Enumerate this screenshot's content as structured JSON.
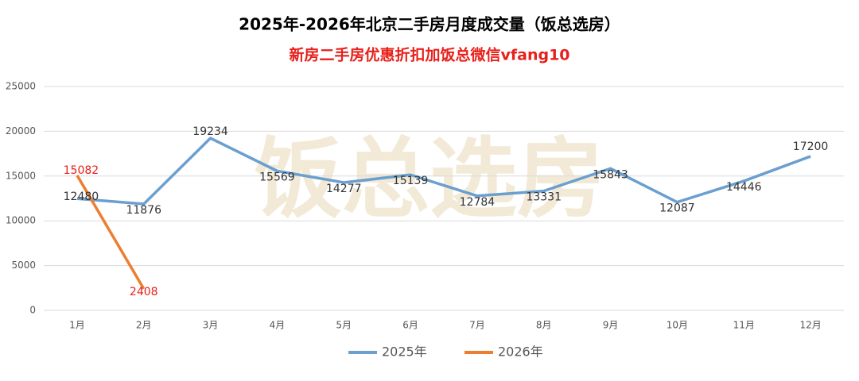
{
  "chart_data": {
    "type": "line",
    "title": "2025年-2026年北京二手房月度成交量（饭总选房）",
    "subtitle": "新房二手房优惠折扣加饭总微信vfang10",
    "watermark": "饭总选房",
    "categories": [
      "1月",
      "2月",
      "3月",
      "4月",
      "5月",
      "6月",
      "7月",
      "8月",
      "9月",
      "10月",
      "11月",
      "12月"
    ],
    "series": [
      {
        "name": "2025年",
        "color": "#6a9fcf",
        "label_color": "#333333",
        "values": [
          12480,
          11876,
          19234,
          15569,
          14277,
          15139,
          12784,
          13331,
          15843,
          12087,
          14446,
          17200
        ]
      },
      {
        "name": "2026年",
        "color": "#ed7d31",
        "label_color": "#e8201a",
        "values": [
          15082,
          2408,
          null,
          null,
          null,
          null,
          null,
          null,
          null,
          null,
          null,
          null
        ]
      }
    ],
    "ylim": [
      0,
      25000
    ],
    "yticks": [
      0,
      5000,
      10000,
      15000,
      20000,
      25000
    ],
    "grid": true,
    "legend": "bottom"
  }
}
